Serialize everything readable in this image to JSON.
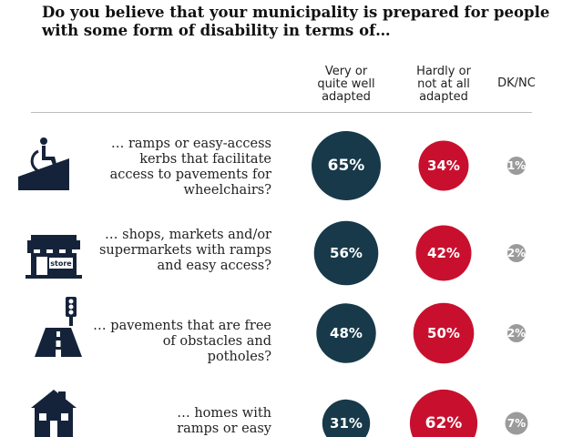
{
  "title": "Do you believe that your municipality is prepared for people with some form of disability in terms of…",
  "colors": {
    "well_adapted": "#17394a",
    "not_adapted": "#c8102e",
    "dknc": "#9b9b9b"
  },
  "icons": [
    "wheelchair-ramp-icon",
    "store-icon",
    "traffic-light-road-icon",
    "house-icon"
  ],
  "store_sign": "store",
  "chart_data": {
    "type": "bubble-table",
    "title": "Do you believe that your municipality is prepared for people with some form of disability in terms of…",
    "columns": [
      "Very or quite well adapted",
      "Hardly or not at all adapted",
      "DK/NC"
    ],
    "column_lines": [
      [
        "Very or",
        "quite well",
        "adapted"
      ],
      [
        "Hardly or",
        "not at all",
        "adapted"
      ],
      [
        "DK/NC"
      ]
    ],
    "categories": [
      "… ramps or easy-access kerbs that facilitate access to pavements for wheelchairs?",
      "… shops, markets and/or supermarkets with ramps and easy access?",
      "… pavements that are free of obstacles and potholes?",
      "… homes with ramps or easy"
    ],
    "category_lines": [
      [
        "… ramps or easy-access",
        "kerbs that facilitate",
        "access to pavements for",
        "wheelchairs?"
      ],
      [
        "… shops, markets and/or",
        "supermarkets with ramps",
        "and easy access?"
      ],
      [
        "… pavements that are free",
        "of obstacles and",
        "potholes?"
      ],
      [
        "… homes with",
        "ramps or easy"
      ]
    ],
    "series": [
      {
        "name": "Very or quite well adapted",
        "values": [
          65,
          56,
          48,
          31
        ]
      },
      {
        "name": "Hardly or not at all adapted",
        "values": [
          34,
          42,
          50,
          62
        ]
      },
      {
        "name": "DK/NC",
        "values": [
          1,
          2,
          2,
          7
        ]
      }
    ],
    "value_suffix": "%"
  }
}
